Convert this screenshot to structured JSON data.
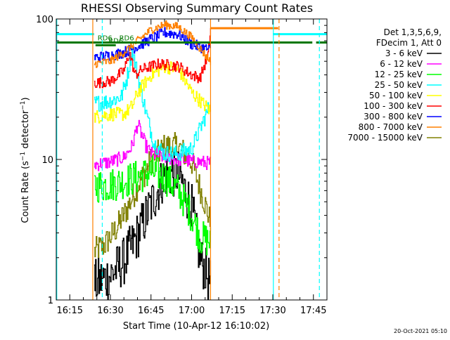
{
  "chart_data": {
    "type": "line",
    "title": "RHESSI Observing Summary Count Rates",
    "xlabel": "Start Time (10-Apr-12 16:10:02)",
    "ylabel_parts": [
      "Count Rate (s",
      "−1",
      " detector",
      "−1",
      ")"
    ],
    "y_scale": "log",
    "ylim": [
      1,
      100
    ],
    "xlim_minutes": [
      0,
      100
    ],
    "x_ticks": [
      {
        "t": 5,
        "label": "16:15"
      },
      {
        "t": 20,
        "label": "16:30"
      },
      {
        "t": 35,
        "label": "16:45"
      },
      {
        "t": 50,
        "label": "17:00"
      },
      {
        "t": 65,
        "label": "17:15"
      },
      {
        "t": 80,
        "label": "17:30"
      },
      {
        "t": 95,
        "label": "17:45"
      }
    ],
    "y_tick_labels": [
      {
        "v": 1,
        "label": "1"
      },
      {
        "v": 10,
        "label": "10"
      },
      {
        "v": 100,
        "label": "100"
      }
    ],
    "legend_header": [
      "Det 1,3,5,6,9,",
      "FDecim 1, Att 0"
    ],
    "legend_position": "right",
    "data_window_minutes": [
      14,
      57
    ],
    "series": [
      {
        "name": "3 - 6 keV",
        "color": "#000000",
        "noise": 0.35,
        "points": [
          [
            14,
            1.3
          ],
          [
            20,
            1.5
          ],
          [
            25,
            1.9
          ],
          [
            30,
            2.9
          ],
          [
            35,
            4.8
          ],
          [
            40,
            7.8
          ],
          [
            45,
            8.0
          ],
          [
            50,
            4.5
          ],
          [
            53,
            2.0
          ],
          [
            57,
            1.3
          ]
        ]
      },
      {
        "name": "6 - 12 keV",
        "color": "#ff00ff",
        "noise": 0.1,
        "points": [
          [
            14,
            9.2
          ],
          [
            20,
            9.6
          ],
          [
            25,
            10.4
          ],
          [
            28,
            12.5
          ],
          [
            30,
            18
          ],
          [
            33,
            12.5
          ],
          [
            35,
            11
          ],
          [
            40,
            10.4
          ],
          [
            45,
            10.0
          ],
          [
            50,
            9.7
          ],
          [
            57,
            9.4
          ]
        ]
      },
      {
        "name": "12 - 25 keV",
        "color": "#00ff00",
        "noise": 0.25,
        "points": [
          [
            14,
            6.5
          ],
          [
            20,
            6.6
          ],
          [
            25,
            7.0
          ],
          [
            30,
            7.5
          ],
          [
            35,
            8.2
          ],
          [
            40,
            7.5
          ],
          [
            45,
            6.0
          ],
          [
            50,
            4.0
          ],
          [
            53,
            2.8
          ],
          [
            57,
            2.6
          ]
        ]
      },
      {
        "name": "25 - 50 keV",
        "color": "#00ffff",
        "noise": 0.12,
        "points": [
          [
            14,
            25
          ],
          [
            20,
            26
          ],
          [
            24,
            28
          ],
          [
            26,
            38
          ],
          [
            28,
            60
          ],
          [
            30,
            40
          ],
          [
            33,
            22
          ],
          [
            36,
            13
          ],
          [
            40,
            11
          ],
          [
            45,
            11
          ],
          [
            50,
            12
          ],
          [
            57,
            25
          ]
        ]
      },
      {
        "name": "50 - 100 keV",
        "color": "#ffff00",
        "noise": 0.1,
        "points": [
          [
            14,
            20
          ],
          [
            20,
            21
          ],
          [
            25,
            21
          ],
          [
            28,
            24
          ],
          [
            30,
            30
          ],
          [
            35,
            40
          ],
          [
            40,
            46
          ],
          [
            45,
            44
          ],
          [
            50,
            30
          ],
          [
            57,
            22
          ]
        ]
      },
      {
        "name": "100 - 300 keV",
        "color": "#ff0000",
        "noise": 0.08,
        "points": [
          [
            14,
            35
          ],
          [
            20,
            36
          ],
          [
            25,
            43
          ],
          [
            27,
            58
          ],
          [
            29,
            40
          ],
          [
            32,
            44
          ],
          [
            38,
            48
          ],
          [
            45,
            46
          ],
          [
            50,
            40
          ],
          [
            53,
            38
          ],
          [
            56,
            55
          ],
          [
            57,
            86
          ]
        ]
      },
      {
        "name": "300 - 800 keV",
        "color": "#0000ff",
        "noise": 0.08,
        "points": [
          [
            14,
            53
          ],
          [
            20,
            55
          ],
          [
            25,
            58
          ],
          [
            30,
            64
          ],
          [
            35,
            72
          ],
          [
            40,
            80
          ],
          [
            45,
            78
          ],
          [
            50,
            66
          ],
          [
            57,
            60
          ]
        ]
      },
      {
        "name": "800 - 7000 keV",
        "color": "#ff8000",
        "noise": 0.06,
        "points": [
          [
            14,
            48
          ],
          [
            20,
            50
          ],
          [
            25,
            58
          ],
          [
            30,
            70
          ],
          [
            35,
            84
          ],
          [
            40,
            91
          ],
          [
            45,
            88
          ],
          [
            50,
            74
          ],
          [
            55,
            55
          ],
          [
            57,
            50
          ]
        ]
      },
      {
        "name": "7000 - 15000 keV",
        "color": "#808000",
        "noise": 0.2,
        "points": [
          [
            14,
            2.2
          ],
          [
            18,
            2.5
          ],
          [
            22,
            3.2
          ],
          [
            26,
            4.4
          ],
          [
            30,
            6.5
          ],
          [
            35,
            9.8
          ],
          [
            40,
            12.3
          ],
          [
            45,
            12.4
          ],
          [
            50,
            9.5
          ],
          [
            54,
            5.5
          ],
          [
            57,
            3.5
          ]
        ]
      }
    ],
    "flags": [
      {
        "label": "RD6",
        "type": "horizontal",
        "color": "#007700",
        "value": 68,
        "segments": [
          [
            0,
            82
          ],
          [
            82,
            94.6
          ],
          [
            96,
            100
          ]
        ],
        "label_at": 18
      },
      {
        "label": "RD6",
        "type": "horizontal",
        "color": "#007700",
        "value": 65,
        "segments": [
          [
            14.5,
            22
          ]
        ],
        "label_at": 22
      },
      {
        "label": "RD6",
        "type": "horizontal",
        "color": "#007700",
        "value": 68,
        "segments": [
          [
            22,
            57
          ]
        ],
        "label_at": 26
      },
      {
        "label": "",
        "type": "horizontal",
        "color": "#ff8000",
        "value": 86,
        "segments": [
          [
            57,
            82
          ]
        ]
      },
      {
        "label": "",
        "type": "horizontal",
        "color": "#00ffff",
        "value": 78,
        "segments": [
          [
            0,
            14
          ],
          [
            80,
            100
          ]
        ]
      }
    ],
    "vertical_markers": [
      {
        "t": 13.5,
        "color": "#ff8000",
        "style": "solid"
      },
      {
        "t": 57,
        "color": "#ff8000",
        "style": "solid"
      },
      {
        "t": 80.2,
        "color": "#00ffff",
        "style": "solid"
      },
      {
        "t": 82.3,
        "color": "#ff8000",
        "style": "dashed"
      },
      {
        "t": 17,
        "color": "#00ffff",
        "style": "dashed"
      },
      {
        "t": 97.2,
        "color": "#00ffff",
        "style": "dashed"
      },
      {
        "t": 0.2,
        "color": "#00ffff",
        "style": "solid"
      }
    ],
    "footer": "20-Oct-2021 05:10"
  }
}
